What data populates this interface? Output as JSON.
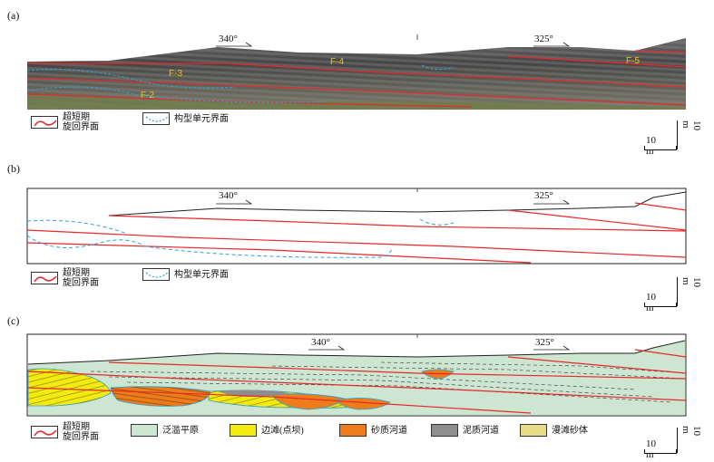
{
  "panels": [
    {
      "label": "(a)"
    },
    {
      "label": "(b)"
    },
    {
      "label": "(c)"
    }
  ],
  "directions": {
    "left": "340°",
    "right": "325°"
  },
  "faults": [
    "F-2",
    "F-3",
    "F-4",
    "F-5"
  ],
  "legend_ab": {
    "red_line": {
      "line1": "超短期",
      "line2": "旋回界面"
    },
    "blue_dashed": "构型单元界面"
  },
  "legend_c": {
    "red_line": {
      "line1": "超短期",
      "line2": "旋回界面"
    },
    "floodplain": "泛滥平原",
    "point_bar": "边滩(点坝)",
    "sandy_channel": "砂质河道",
    "muddy_channel": "泥质河道",
    "splay": "漫滩砂体"
  },
  "colors": {
    "red": "#e8282b",
    "blue": "#2aa3d6",
    "floodplain": "#cde6d2",
    "point_bar": "#f2eb10",
    "sandy_channel": "#ee7c1a",
    "muddy_channel": "#8e8e8e",
    "splay": "#e7dc8a"
  },
  "scale": {
    "horizontal": "10 m",
    "vertical": "10 m"
  }
}
